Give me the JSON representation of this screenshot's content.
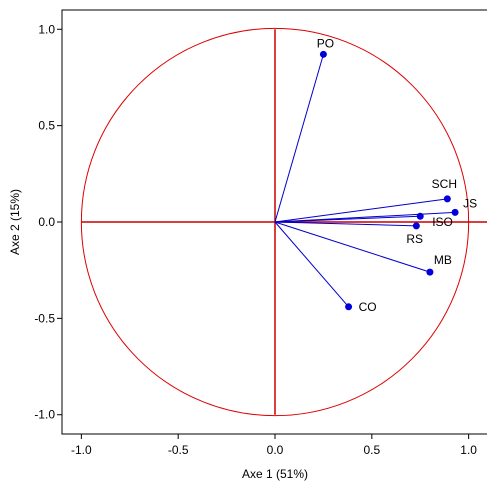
{
  "chart_data": {
    "type": "scatter",
    "title": "",
    "xlabel": "Axe 1 (51%)",
    "ylabel": "Axe 2 (15%)",
    "xlim": [
      -1.1,
      1.1
    ],
    "ylim": [
      -1.1,
      1.1
    ],
    "x_ticks": [
      "-1.0",
      "-0.5",
      "0.0",
      "0.5",
      "1.0"
    ],
    "x_tick_values": [
      -1.0,
      -0.5,
      0.0,
      0.5,
      1.0
    ],
    "y_ticks": [
      "1.0",
      "0.5",
      "0.0",
      "-0.5",
      "-1.0"
    ],
    "y_tick_values": [
      1.0,
      0.5,
      0.0,
      -0.5,
      -1.0
    ],
    "unit_circle": true,
    "grid": false,
    "points": [
      {
        "label": "PO",
        "x": 0.25,
        "y": 0.87
      },
      {
        "label": "SCH",
        "x": 0.89,
        "y": 0.12
      },
      {
        "label": "JS",
        "x": 0.93,
        "y": 0.05
      },
      {
        "label": "ISO",
        "x": 0.75,
        "y": 0.03
      },
      {
        "label": "RS",
        "x": 0.73,
        "y": -0.02
      },
      {
        "label": "MB",
        "x": 0.8,
        "y": -0.26
      },
      {
        "label": "CO",
        "x": 0.38,
        "y": -0.44
      }
    ],
    "colors": {
      "vectors": "#0000cc",
      "points": "#0000dd",
      "circle": "#dd0000",
      "axes_lines": "#cc0000",
      "frame": "#000000"
    }
  }
}
